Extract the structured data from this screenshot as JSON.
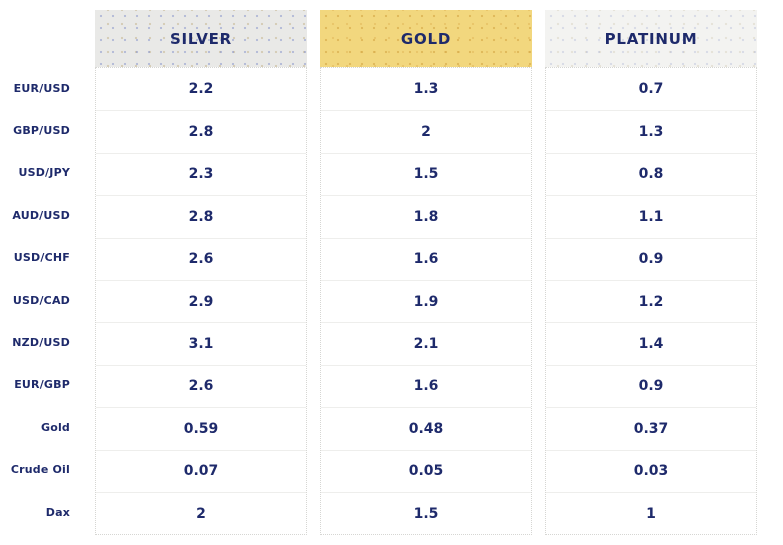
{
  "chart_data": {
    "type": "table",
    "columns": [
      "SILVER",
      "GOLD",
      "PLATINUM"
    ],
    "row_labels": [
      "EUR/USD",
      "GBP/USD",
      "USD/JPY",
      "AUD/USD",
      "USD/CHF",
      "USD/CAD",
      "NZD/USD",
      "EUR/GBP",
      "Gold",
      "Crude Oil",
      "Dax"
    ],
    "series": [
      {
        "name": "SILVER",
        "values": [
          "2.2",
          "2.8",
          "2.3",
          "2.8",
          "2.6",
          "2.9",
          "3.1",
          "2.6",
          "0.59",
          "0.07",
          "2"
        ]
      },
      {
        "name": "GOLD",
        "values": [
          "1.3",
          "2",
          "1.5",
          "1.8",
          "1.6",
          "1.9",
          "2.1",
          "1.6",
          "0.48",
          "0.05",
          "1.5"
        ]
      },
      {
        "name": "PLATINUM",
        "values": [
          "0.7",
          "1.3",
          "0.8",
          "1.1",
          "0.9",
          "1.2",
          "1.4",
          "0.9",
          "0.37",
          "0.03",
          "1"
        ]
      }
    ],
    "colors": {
      "text_navy": "#1e2a6b",
      "silver_header_bg": "#e9e9e7",
      "gold_header_bg": "#f2d77e",
      "platinum_header_bg": "#f3f3f1",
      "cell_bg": "#ffffff",
      "border": "#d6d6d3",
      "row_separator": "#eeeeec"
    },
    "layout": {
      "grid": "off",
      "legend": "none",
      "header_row": "top",
      "row_label_column": "left"
    }
  }
}
